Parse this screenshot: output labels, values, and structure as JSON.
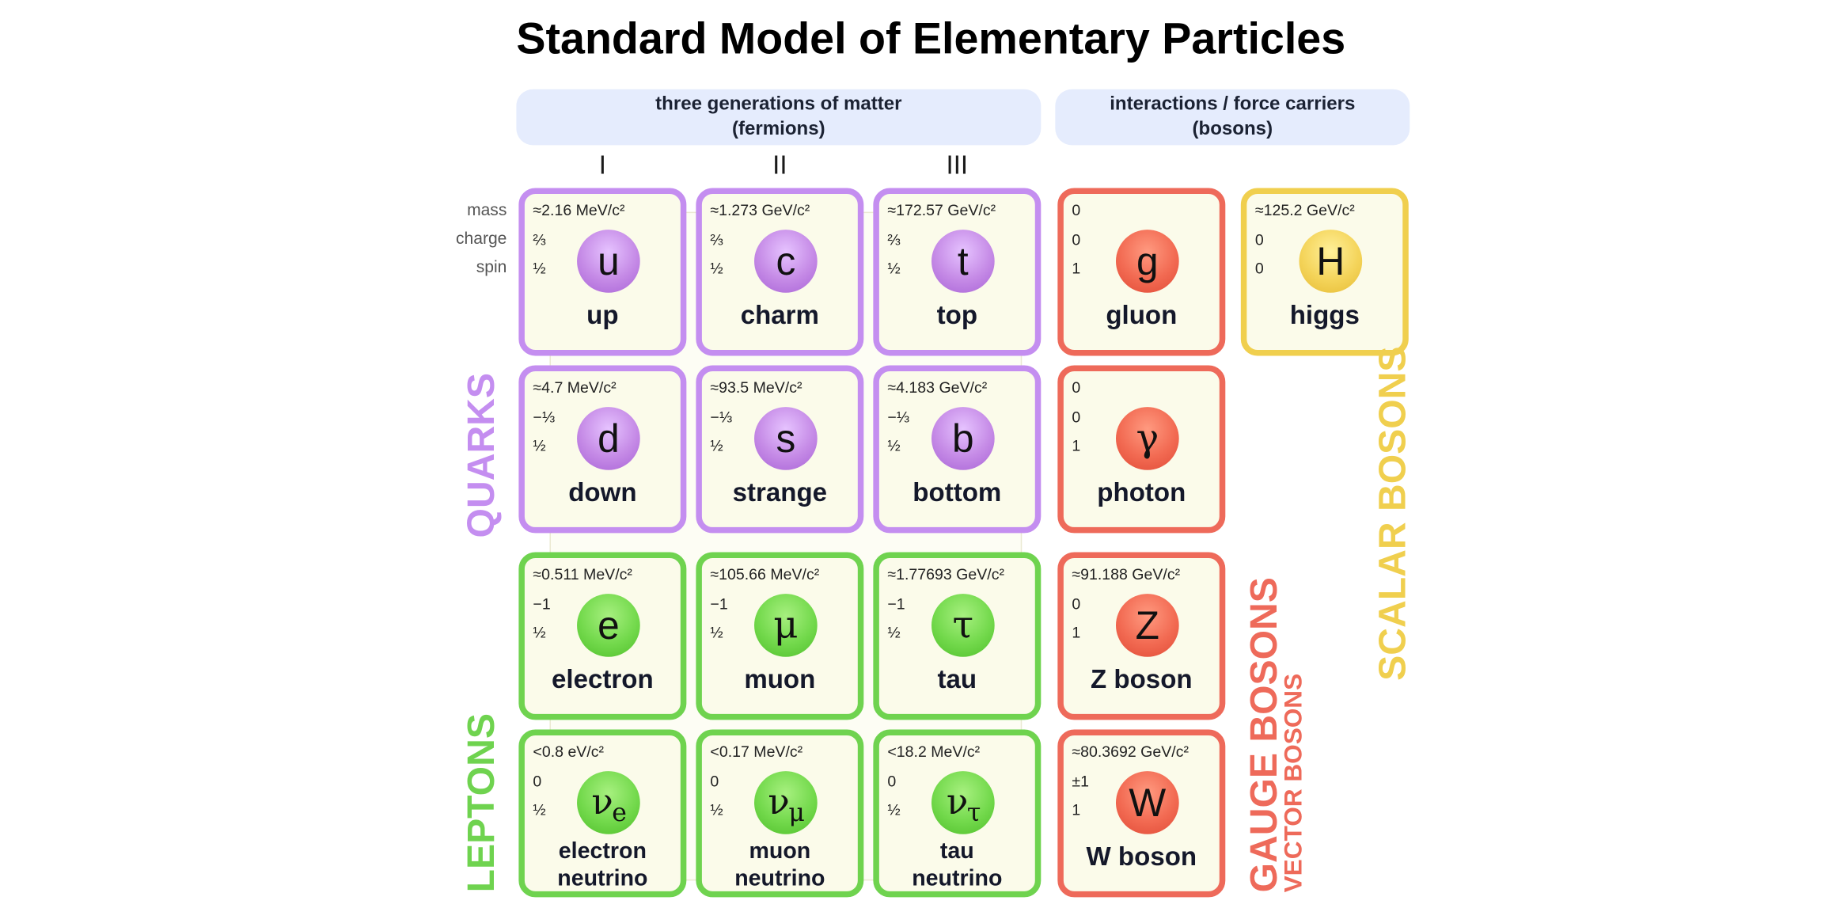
{
  "title": "Standard Model of Elementary Particles",
  "groups": {
    "fermions_line1": "three generations of matter",
    "fermions_line2": "(fermions)",
    "bosons_line1": "interactions / force carriers",
    "bosons_line2": "(bosons)"
  },
  "generations": [
    "I",
    "II",
    "III"
  ],
  "row_labels": {
    "mass": "mass",
    "charge": "charge",
    "spin": "spin"
  },
  "side_labels": {
    "quarks": "QUARKS",
    "leptons": "LEPTONS",
    "gauge_bosons": "GAUGE BOSONS",
    "vector_bosons": "VECTOR BOSONS",
    "scalar_bosons": "SCALAR BOSONS"
  },
  "colors": {
    "quark": "#c48ef0",
    "lepton": "#6fd34f",
    "gauge": "#ee6a5a",
    "scalar": "#f0cf4e",
    "header_bg": "#e5ecfd"
  },
  "particles": [
    {
      "id": "up",
      "mass": "≈2.16 MeV/c²",
      "charge": "⅔",
      "spin": "½",
      "symbol": "u",
      "name": "up"
    },
    {
      "id": "charm",
      "mass": "≈1.273 GeV/c²",
      "charge": "⅔",
      "spin": "½",
      "symbol": "c",
      "name": "charm"
    },
    {
      "id": "top",
      "mass": "≈172.57 GeV/c²",
      "charge": "⅔",
      "spin": "½",
      "symbol": "t",
      "name": "top"
    },
    {
      "id": "gluon",
      "mass": "0",
      "charge": "0",
      "spin": "1",
      "symbol": "g",
      "name": "gluon"
    },
    {
      "id": "higgs",
      "mass": "≈125.2 GeV/c²",
      "charge": "0",
      "spin": "0",
      "symbol": "H",
      "name": "higgs"
    },
    {
      "id": "down",
      "mass": "≈4.7 MeV/c²",
      "charge": "−⅓",
      "spin": "½",
      "symbol": "d",
      "name": "down"
    },
    {
      "id": "strange",
      "mass": "≈93.5 MeV/c²",
      "charge": "−⅓",
      "spin": "½",
      "symbol": "s",
      "name": "strange"
    },
    {
      "id": "bottom",
      "mass": "≈4.183 GeV/c²",
      "charge": "−⅓",
      "spin": "½",
      "symbol": "b",
      "name": "bottom"
    },
    {
      "id": "photon",
      "mass": "0",
      "charge": "0",
      "spin": "1",
      "symbol": "γ",
      "name": "photon"
    },
    {
      "id": "electron",
      "mass": "≈0.511 MeV/c²",
      "charge": "−1",
      "spin": "½",
      "symbol": "e",
      "name": "electron"
    },
    {
      "id": "muon",
      "mass": "≈105.66 MeV/c²",
      "charge": "−1",
      "spin": "½",
      "symbol": "μ",
      "name": "muon"
    },
    {
      "id": "tau",
      "mass": "≈1.77693 GeV/c²",
      "charge": "−1",
      "spin": "½",
      "symbol": "τ",
      "name": "tau"
    },
    {
      "id": "zboson",
      "mass": "≈91.188 GeV/c²",
      "charge": "0",
      "spin": "1",
      "symbol": "Z",
      "name": "Z boson"
    },
    {
      "id": "enu",
      "mass": "<0.8 eV/c²",
      "charge": "0",
      "spin": "½",
      "symbol": "ν",
      "subscript": "e",
      "name_line1": "electron",
      "name_line2": "neutrino"
    },
    {
      "id": "munu",
      "mass": "<0.17 MeV/c²",
      "charge": "0",
      "spin": "½",
      "symbol": "ν",
      "subscript": "μ",
      "name_line1": "muon",
      "name_line2": "neutrino"
    },
    {
      "id": "taunu",
      "mass": "<18.2 MeV/c²",
      "charge": "0",
      "spin": "½",
      "symbol": "ν",
      "subscript": "τ",
      "name_line1": "tau",
      "name_line2": "neutrino"
    },
    {
      "id": "wboson",
      "mass": "≈80.3692 GeV/c²",
      "charge": "±1",
      "spin": "1",
      "symbol": "W",
      "name": "W boson"
    }
  ]
}
